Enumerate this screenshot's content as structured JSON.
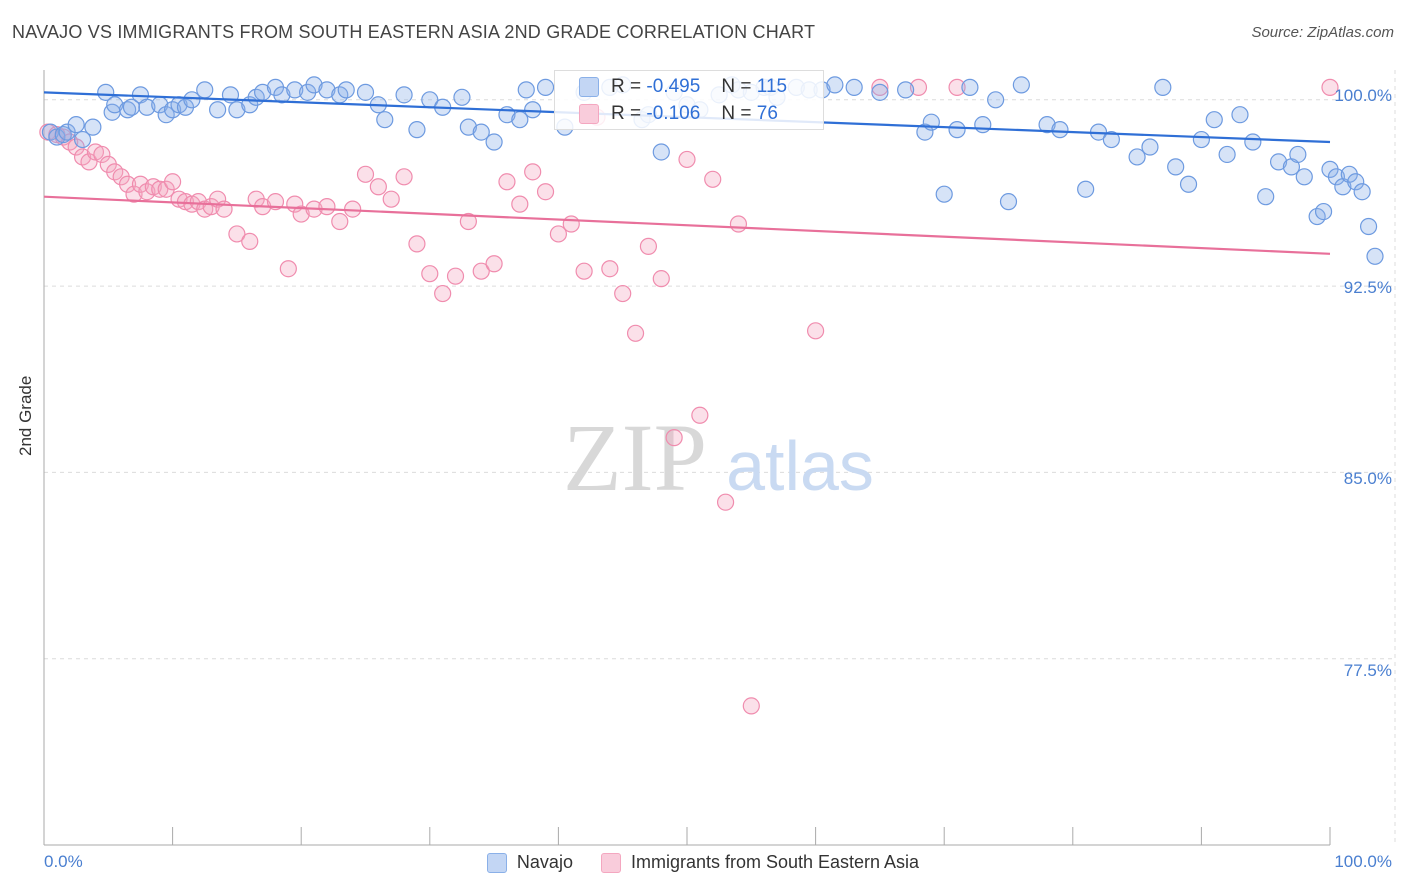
{
  "header": {
    "title": "NAVAJO VS IMMIGRANTS FROM SOUTH EASTERN ASIA 2ND GRADE CORRELATION CHART",
    "source": "Source: ZipAtlas.com"
  },
  "watermark": {
    "zip": "ZIP",
    "atlas": "atlas"
  },
  "colors": {
    "navajo": "#8ab0e8",
    "navajo_line": "#2f6fd6",
    "immigrants": "#f4a7c0",
    "immigrants_line": "#e8709a",
    "tick_text": "#4a7fd0"
  },
  "stats": {
    "navajo": {
      "r_label": "R =",
      "r_value": "-0.495",
      "n_label": "N =",
      "n_value": "115"
    },
    "immigrants": {
      "r_label": "R =",
      "r_value": "-0.106",
      "n_label": "N =",
      "n_value": "76"
    }
  },
  "legend": {
    "navajo": "Navajo",
    "immigrants": "Immigrants from South Eastern Asia"
  },
  "axes": {
    "y_title": "2nd Grade",
    "y_ticks": [
      "100.0%",
      "92.5%",
      "85.0%",
      "77.5%"
    ],
    "x_min_label": "0.0%",
    "x_max_label": "100.0%"
  },
  "chart_data": {
    "type": "scatter",
    "title": "NAVAJO VS IMMIGRANTS FROM SOUTH EASTERN ASIA 2ND GRADE CORRELATION CHART",
    "xlabel": "",
    "ylabel": "2nd Grade",
    "xlim": [
      0,
      100
    ],
    "ylim": [
      70,
      101.2
    ],
    "y_gridlines": [
      100,
      92.5,
      85,
      77.5
    ],
    "grid": true,
    "legend_position": "bottom",
    "series": [
      {
        "name": "Navajo",
        "trend": {
          "x": [
            0,
            100
          ],
          "y": [
            100.3,
            98.3
          ]
        },
        "points": [
          [
            0.5,
            98.7
          ],
          [
            1,
            98.5
          ],
          [
            1.5,
            98.6
          ],
          [
            1.8,
            98.7
          ],
          [
            2.5,
            99
          ],
          [
            3,
            98.4
          ],
          [
            3.8,
            98.9
          ],
          [
            4.8,
            100.3
          ],
          [
            5.3,
            99.5
          ],
          [
            5.5,
            99.8
          ],
          [
            6.5,
            99.6
          ],
          [
            6.8,
            99.7
          ],
          [
            7.5,
            100.2
          ],
          [
            8,
            99.7
          ],
          [
            9,
            99.8
          ],
          [
            9.5,
            99.4
          ],
          [
            10,
            99.6
          ],
          [
            10.5,
            99.8
          ],
          [
            11,
            99.7
          ],
          [
            11.5,
            100
          ],
          [
            12.5,
            100.4
          ],
          [
            13.5,
            99.6
          ],
          [
            14.5,
            100.2
          ],
          [
            15,
            99.6
          ],
          [
            16,
            99.8
          ],
          [
            16.5,
            100.1
          ],
          [
            17,
            100.3
          ],
          [
            18,
            100.5
          ],
          [
            18.5,
            100.2
          ],
          [
            19.5,
            100.4
          ],
          [
            20.5,
            100.3
          ],
          [
            21,
            100.6
          ],
          [
            22,
            100.4
          ],
          [
            23,
            100.2
          ],
          [
            23.5,
            100.4
          ],
          [
            25,
            100.3
          ],
          [
            26,
            99.8
          ],
          [
            26.5,
            99.2
          ],
          [
            28,
            100.2
          ],
          [
            29,
            98.8
          ],
          [
            30,
            100
          ],
          [
            31,
            99.7
          ],
          [
            32.5,
            100.1
          ],
          [
            33,
            98.9
          ],
          [
            34,
            98.7
          ],
          [
            35,
            98.3
          ],
          [
            36,
            99.4
          ],
          [
            37,
            99.2
          ],
          [
            37.5,
            100.4
          ],
          [
            38,
            99.6
          ],
          [
            39,
            100.5
          ],
          [
            40.5,
            98.9
          ],
          [
            42,
            100.3
          ],
          [
            42.5,
            99.5
          ],
          [
            44,
            100.5
          ],
          [
            45,
            100.6
          ],
          [
            46.5,
            99.2
          ],
          [
            47,
            99.4
          ],
          [
            48,
            97.9
          ],
          [
            49,
            100.3
          ],
          [
            50,
            99.8
          ],
          [
            51,
            99.6
          ],
          [
            52.5,
            100.2
          ],
          [
            53.5,
            100.6
          ],
          [
            54,
            100.4
          ],
          [
            55,
            100.3
          ],
          [
            56,
            100.5
          ],
          [
            56.5,
            100.5
          ],
          [
            57,
            100.1
          ],
          [
            58.5,
            100.5
          ],
          [
            59.5,
            100.4
          ],
          [
            60.5,
            100.4
          ],
          [
            61.5,
            100.6
          ],
          [
            63,
            100.5
          ],
          [
            65,
            100.3
          ],
          [
            67,
            100.4
          ],
          [
            68.5,
            98.7
          ],
          [
            69,
            99.1
          ],
          [
            70,
            96.2
          ],
          [
            71,
            98.8
          ],
          [
            72,
            100.5
          ],
          [
            73,
            99
          ],
          [
            74,
            100
          ],
          [
            75,
            95.9
          ],
          [
            76,
            100.6
          ],
          [
            78,
            99
          ],
          [
            79,
            98.8
          ],
          [
            81,
            96.4
          ],
          [
            82,
            98.7
          ],
          [
            83,
            98.4
          ],
          [
            85,
            97.7
          ],
          [
            86,
            98.1
          ],
          [
            87,
            100.5
          ],
          [
            88,
            97.3
          ],
          [
            89,
            96.6
          ],
          [
            90,
            98.4
          ],
          [
            91,
            99.2
          ],
          [
            92,
            97.8
          ],
          [
            93,
            99.4
          ],
          [
            94,
            98.3
          ],
          [
            95,
            96.1
          ],
          [
            96,
            97.5
          ],
          [
            97,
            97.3
          ],
          [
            97.5,
            97.8
          ],
          [
            98,
            96.9
          ],
          [
            99,
            95.3
          ],
          [
            99.5,
            95.5
          ],
          [
            100,
            97.2
          ],
          [
            100.5,
            96.9
          ],
          [
            101,
            96.5
          ],
          [
            101.5,
            97
          ],
          [
            102,
            96.7
          ],
          [
            102.5,
            96.3
          ],
          [
            103,
            94.9
          ],
          [
            103.5,
            93.7
          ]
        ]
      },
      {
        "name": "Immigrants from South Eastern Asia",
        "trend": {
          "x": [
            0,
            100
          ],
          "y": [
            96.1,
            93.8
          ]
        },
        "points": [
          [
            0.3,
            98.7
          ],
          [
            1,
            98.6
          ],
          [
            1.5,
            98.5
          ],
          [
            2,
            98.3
          ],
          [
            2.5,
            98.1
          ],
          [
            3,
            97.7
          ],
          [
            3.5,
            97.5
          ],
          [
            4,
            97.9
          ],
          [
            4.5,
            97.8
          ],
          [
            5,
            97.4
          ],
          [
            5.5,
            97.1
          ],
          [
            6,
            96.9
          ],
          [
            6.5,
            96.6
          ],
          [
            7,
            96.2
          ],
          [
            7.5,
            96.6
          ],
          [
            8,
            96.3
          ],
          [
            8.5,
            96.5
          ],
          [
            9,
            96.4
          ],
          [
            9.5,
            96.4
          ],
          [
            10,
            96.7
          ],
          [
            10.5,
            96.0
          ],
          [
            11,
            95.9
          ],
          [
            11.5,
            95.8
          ],
          [
            12,
            95.9
          ],
          [
            12.5,
            95.6
          ],
          [
            13,
            95.7
          ],
          [
            13.5,
            96.0
          ],
          [
            14,
            95.6
          ],
          [
            15,
            94.6
          ],
          [
            16,
            94.3
          ],
          [
            16.5,
            96.0
          ],
          [
            17,
            95.7
          ],
          [
            18,
            95.9
          ],
          [
            19,
            93.2
          ],
          [
            19.5,
            95.8
          ],
          [
            20,
            95.4
          ],
          [
            21,
            95.6
          ],
          [
            22,
            95.7
          ],
          [
            23,
            95.1
          ],
          [
            24,
            95.6
          ],
          [
            25,
            97.0
          ],
          [
            26,
            96.5
          ],
          [
            27,
            96.0
          ],
          [
            28,
            96.9
          ],
          [
            29,
            94.2
          ],
          [
            30,
            93.0
          ],
          [
            31,
            92.2
          ],
          [
            32,
            92.9
          ],
          [
            33,
            95.1
          ],
          [
            34,
            93.1
          ],
          [
            35,
            93.4
          ],
          [
            36,
            96.7
          ],
          [
            37,
            95.8
          ],
          [
            38,
            97.1
          ],
          [
            39,
            96.3
          ],
          [
            40,
            94.6
          ],
          [
            41,
            95.0
          ],
          [
            42,
            93.1
          ],
          [
            43,
            99.3
          ],
          [
            44,
            93.2
          ],
          [
            45,
            92.2
          ],
          [
            46,
            90.6
          ],
          [
            47,
            94.1
          ],
          [
            48,
            92.8
          ],
          [
            49,
            86.4
          ],
          [
            50,
            97.6
          ],
          [
            51,
            87.3
          ],
          [
            52,
            96.8
          ],
          [
            53,
            83.8
          ],
          [
            54,
            95.0
          ],
          [
            55,
            75.6
          ],
          [
            60,
            90.7
          ],
          [
            65,
            100.5
          ],
          [
            68,
            100.5
          ],
          [
            71,
            100.5
          ],
          [
            100,
            100.5
          ]
        ]
      }
    ]
  }
}
